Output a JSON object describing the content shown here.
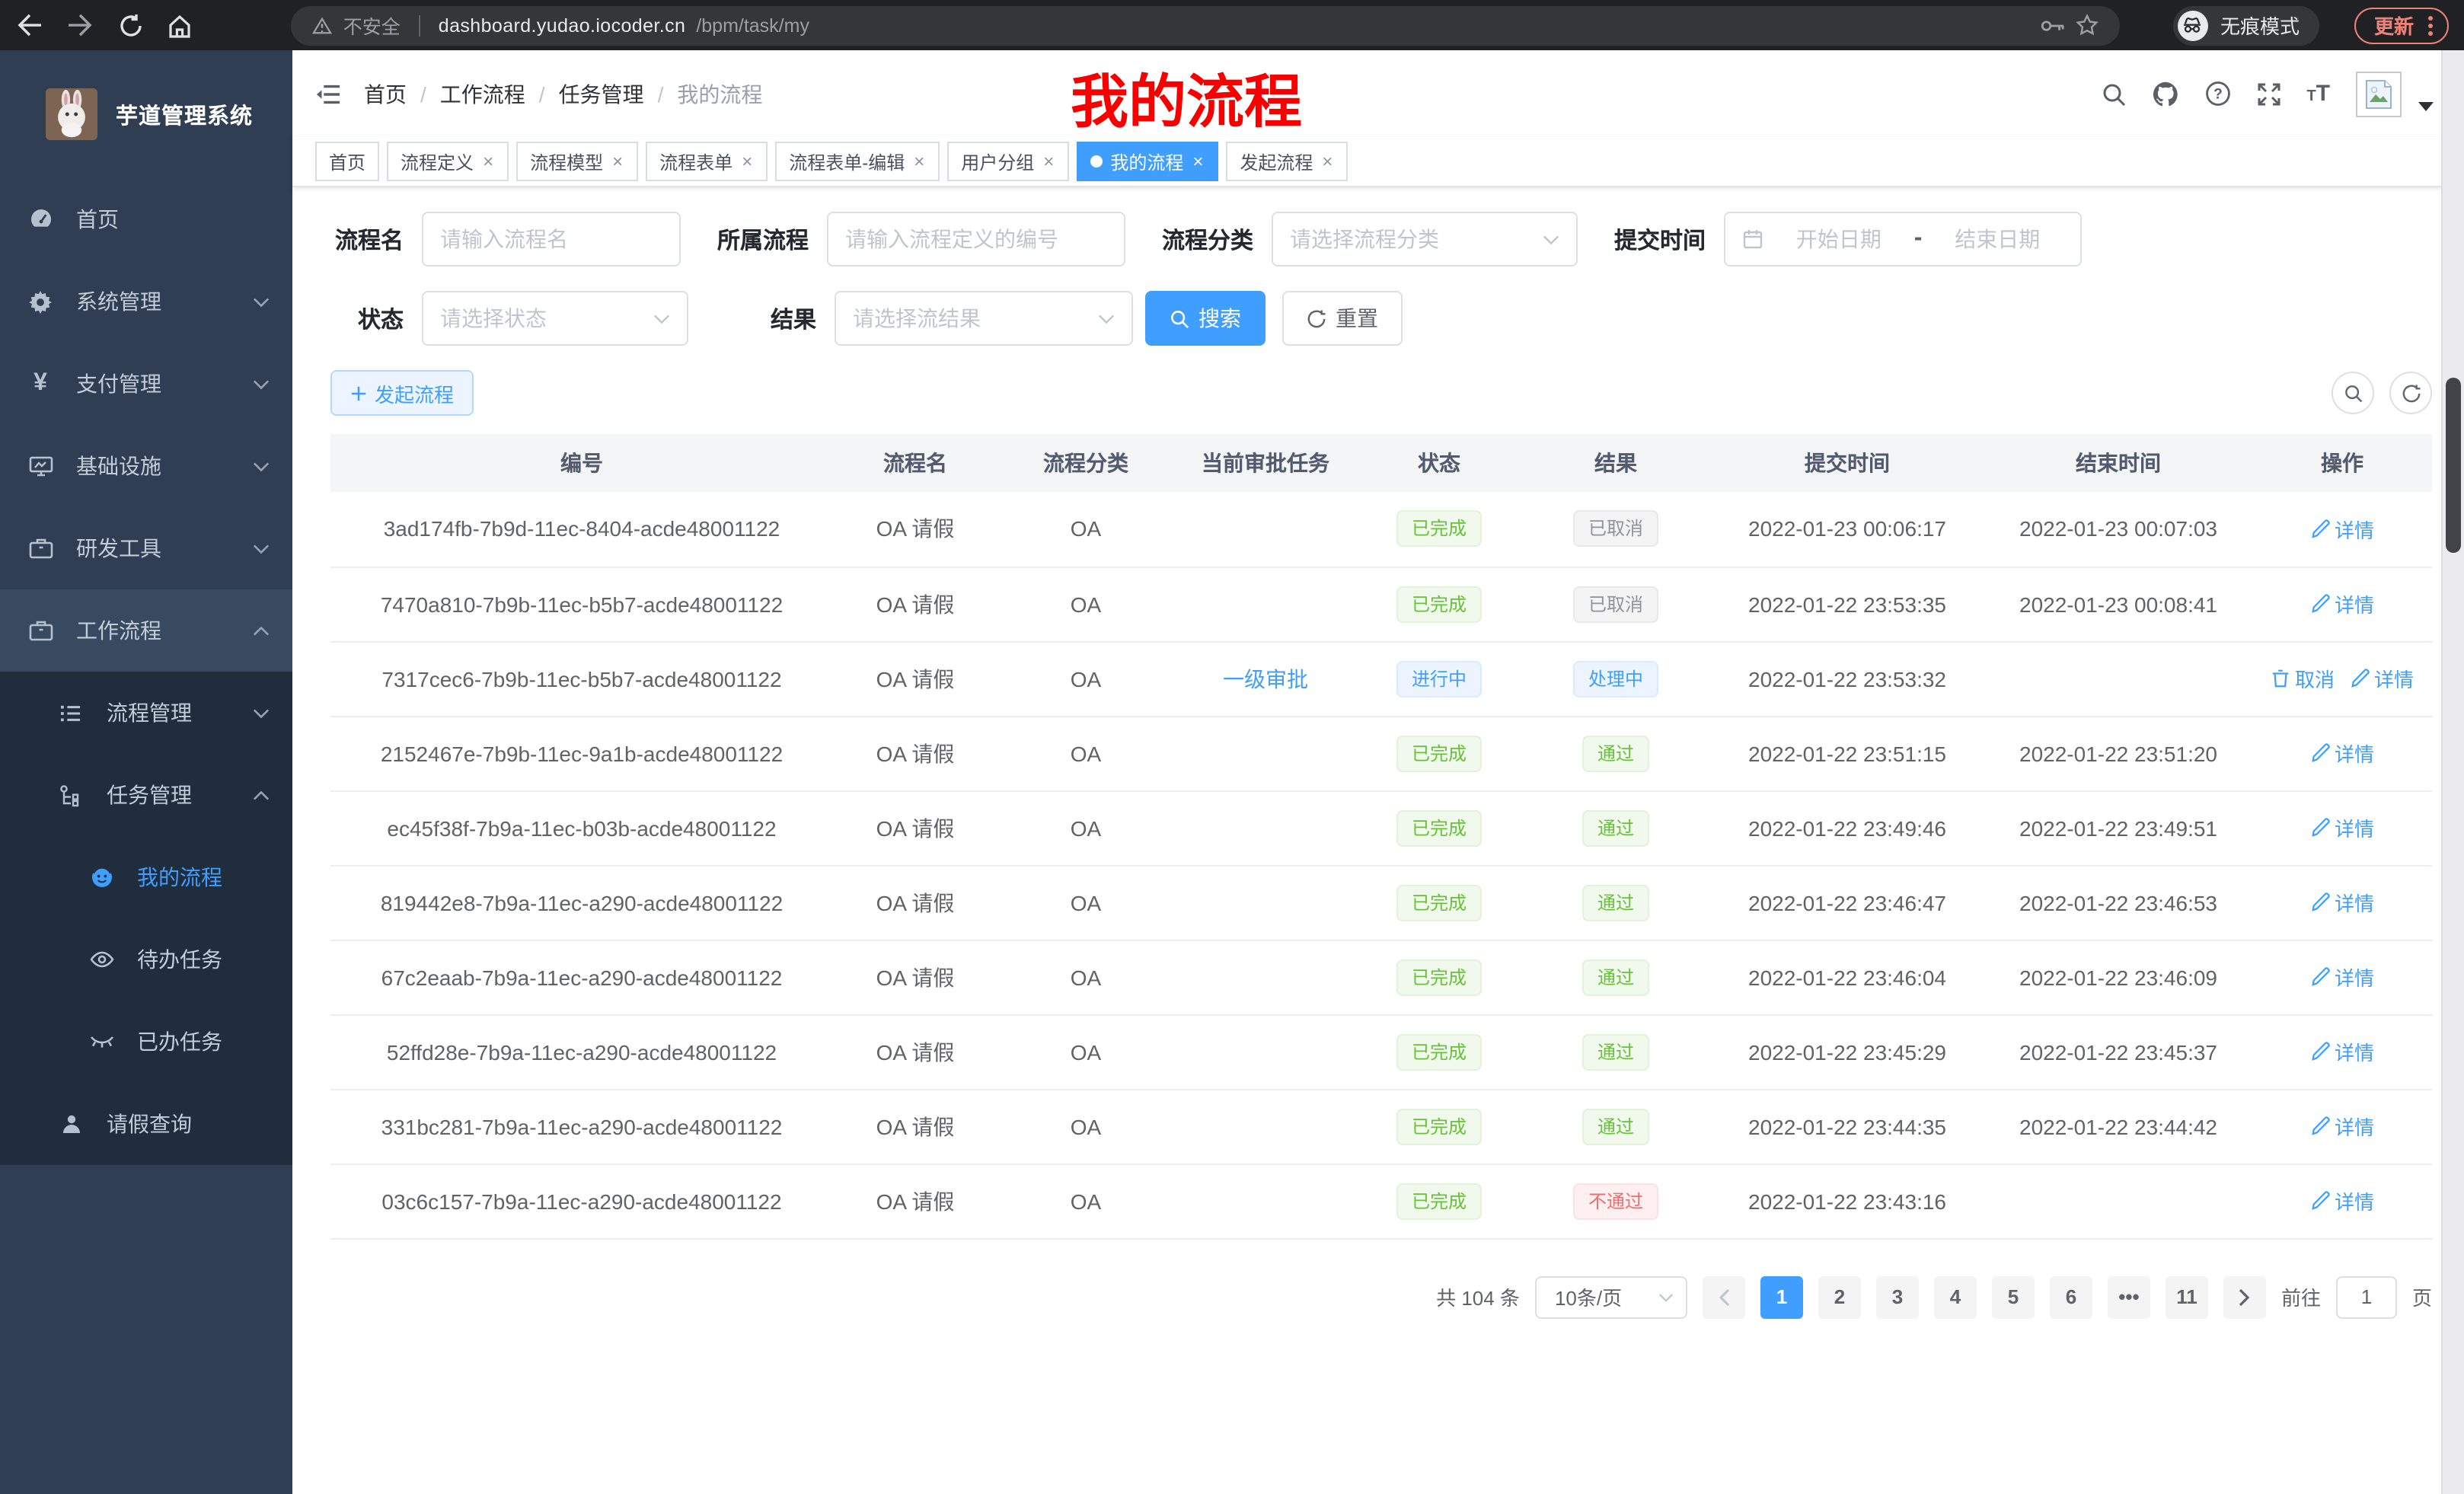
{
  "colors": {
    "accent": "#409eff",
    "success": "#67c23a",
    "danger": "#f56c6c",
    "info": "#909399",
    "annotation_red": "#f70000"
  },
  "browser": {
    "security_label": "不安全",
    "url_host": "dashboard.yudao.iocoder.cn",
    "url_path": "/bpm/task/my",
    "incognito_label": "无痕模式",
    "update_label": "更新"
  },
  "sidebar": {
    "app_title": "芋道管理系统",
    "items": [
      {
        "label": "首页"
      },
      {
        "label": "系统管理"
      },
      {
        "label": "支付管理"
      },
      {
        "label": "基础设施"
      },
      {
        "label": "研发工具"
      },
      {
        "label": "工作流程"
      },
      {
        "label": "流程管理"
      },
      {
        "label": "任务管理"
      },
      {
        "label": "我的流程"
      },
      {
        "label": "待办任务"
      },
      {
        "label": "已办任务"
      },
      {
        "label": "请假查询"
      }
    ]
  },
  "header": {
    "breadcrumb": [
      "首页",
      "工作流程",
      "任务管理",
      "我的流程"
    ],
    "overlay_title": "我的流程"
  },
  "tabs": [
    {
      "label": "首页",
      "closable": false,
      "active": false
    },
    {
      "label": "流程定义",
      "closable": true,
      "active": false
    },
    {
      "label": "流程模型",
      "closable": true,
      "active": false
    },
    {
      "label": "流程表单",
      "closable": true,
      "active": false
    },
    {
      "label": "流程表单-编辑",
      "closable": true,
      "active": false
    },
    {
      "label": "用户分组",
      "closable": true,
      "active": false
    },
    {
      "label": "我的流程",
      "closable": true,
      "active": true
    },
    {
      "label": "发起流程",
      "closable": true,
      "active": false
    }
  ],
  "filters": {
    "name_label": "流程名",
    "name_placeholder": "请输入流程名",
    "definition_label": "所属流程",
    "definition_placeholder": "请输入流程定义的编号",
    "category_label": "流程分类",
    "category_placeholder": "请选择流程分类",
    "time_label": "提交时间",
    "start_placeholder": "开始日期",
    "range_separator": "-",
    "end_placeholder": "结束日期",
    "status_label": "状态",
    "status_placeholder": "请选择状态",
    "result_label": "结果",
    "result_placeholder": "请选择流结果",
    "search_label": "搜索",
    "reset_label": "重置"
  },
  "toolbar": {
    "create_label": "发起流程"
  },
  "table": {
    "columns": [
      "编号",
      "流程名",
      "流程分类",
      "当前审批任务",
      "状态",
      "结果",
      "提交时间",
      "结束时间",
      "操作"
    ],
    "action_labels": {
      "cancel": "取消",
      "detail": "详情"
    },
    "rows": [
      {
        "id": "3ad174fb-7b9d-11ec-8404-acde48001122",
        "name": "OA 请假",
        "category": "OA",
        "task": "",
        "status": {
          "label": "已完成",
          "type": "success"
        },
        "result": {
          "label": "已取消",
          "type": "info"
        },
        "submit": "2022-01-23 00:06:17",
        "end": "2022-01-23 00:07:03",
        "actions": [
          "detail"
        ]
      },
      {
        "id": "7470a810-7b9b-11ec-b5b7-acde48001122",
        "name": "OA 请假",
        "category": "OA",
        "task": "",
        "status": {
          "label": "已完成",
          "type": "success"
        },
        "result": {
          "label": "已取消",
          "type": "info"
        },
        "submit": "2022-01-22 23:53:35",
        "end": "2022-01-23 00:08:41",
        "actions": [
          "detail"
        ]
      },
      {
        "id": "7317cec6-7b9b-11ec-b5b7-acde48001122",
        "name": "OA 请假",
        "category": "OA",
        "task": "一级审批",
        "status": {
          "label": "进行中",
          "type": "primary"
        },
        "result": {
          "label": "处理中",
          "type": "primary"
        },
        "submit": "2022-01-22 23:53:32",
        "end": "",
        "actions": [
          "cancel",
          "detail"
        ]
      },
      {
        "id": "2152467e-7b9b-11ec-9a1b-acde48001122",
        "name": "OA 请假",
        "category": "OA",
        "task": "",
        "status": {
          "label": "已完成",
          "type": "success"
        },
        "result": {
          "label": "通过",
          "type": "success"
        },
        "submit": "2022-01-22 23:51:15",
        "end": "2022-01-22 23:51:20",
        "actions": [
          "detail"
        ]
      },
      {
        "id": "ec45f38f-7b9a-11ec-b03b-acde48001122",
        "name": "OA 请假",
        "category": "OA",
        "task": "",
        "status": {
          "label": "已完成",
          "type": "success"
        },
        "result": {
          "label": "通过",
          "type": "success"
        },
        "submit": "2022-01-22 23:49:46",
        "end": "2022-01-22 23:49:51",
        "actions": [
          "detail"
        ]
      },
      {
        "id": "819442e8-7b9a-11ec-a290-acde48001122",
        "name": "OA 请假",
        "category": "OA",
        "task": "",
        "status": {
          "label": "已完成",
          "type": "success"
        },
        "result": {
          "label": "通过",
          "type": "success"
        },
        "submit": "2022-01-22 23:46:47",
        "end": "2022-01-22 23:46:53",
        "actions": [
          "detail"
        ]
      },
      {
        "id": "67c2eaab-7b9a-11ec-a290-acde48001122",
        "name": "OA 请假",
        "category": "OA",
        "task": "",
        "status": {
          "label": "已完成",
          "type": "success"
        },
        "result": {
          "label": "通过",
          "type": "success"
        },
        "submit": "2022-01-22 23:46:04",
        "end": "2022-01-22 23:46:09",
        "actions": [
          "detail"
        ]
      },
      {
        "id": "52ffd28e-7b9a-11ec-a290-acde48001122",
        "name": "OA 请假",
        "category": "OA",
        "task": "",
        "status": {
          "label": "已完成",
          "type": "success"
        },
        "result": {
          "label": "通过",
          "type": "success"
        },
        "submit": "2022-01-22 23:45:29",
        "end": "2022-01-22 23:45:37",
        "actions": [
          "detail"
        ]
      },
      {
        "id": "331bc281-7b9a-11ec-a290-acde48001122",
        "name": "OA 请假",
        "category": "OA",
        "task": "",
        "status": {
          "label": "已完成",
          "type": "success"
        },
        "result": {
          "label": "通过",
          "type": "success"
        },
        "submit": "2022-01-22 23:44:35",
        "end": "2022-01-22 23:44:42",
        "actions": [
          "detail"
        ]
      },
      {
        "id": "03c6c157-7b9a-11ec-a290-acde48001122",
        "name": "OA 请假",
        "category": "OA",
        "task": "",
        "status": {
          "label": "已完成",
          "type": "success"
        },
        "result": {
          "label": "不通过",
          "type": "danger"
        },
        "submit": "2022-01-22 23:43:16",
        "end": "",
        "actions": [
          "detail"
        ]
      }
    ]
  },
  "pagination": {
    "total": "共 104 条",
    "page_size": "10条/页",
    "pages": [
      "1",
      "2",
      "3",
      "4",
      "5",
      "6",
      "•••",
      "11"
    ],
    "active_page": "1",
    "goto_label": "前往",
    "goto_value": "1",
    "unit_label": "页"
  }
}
